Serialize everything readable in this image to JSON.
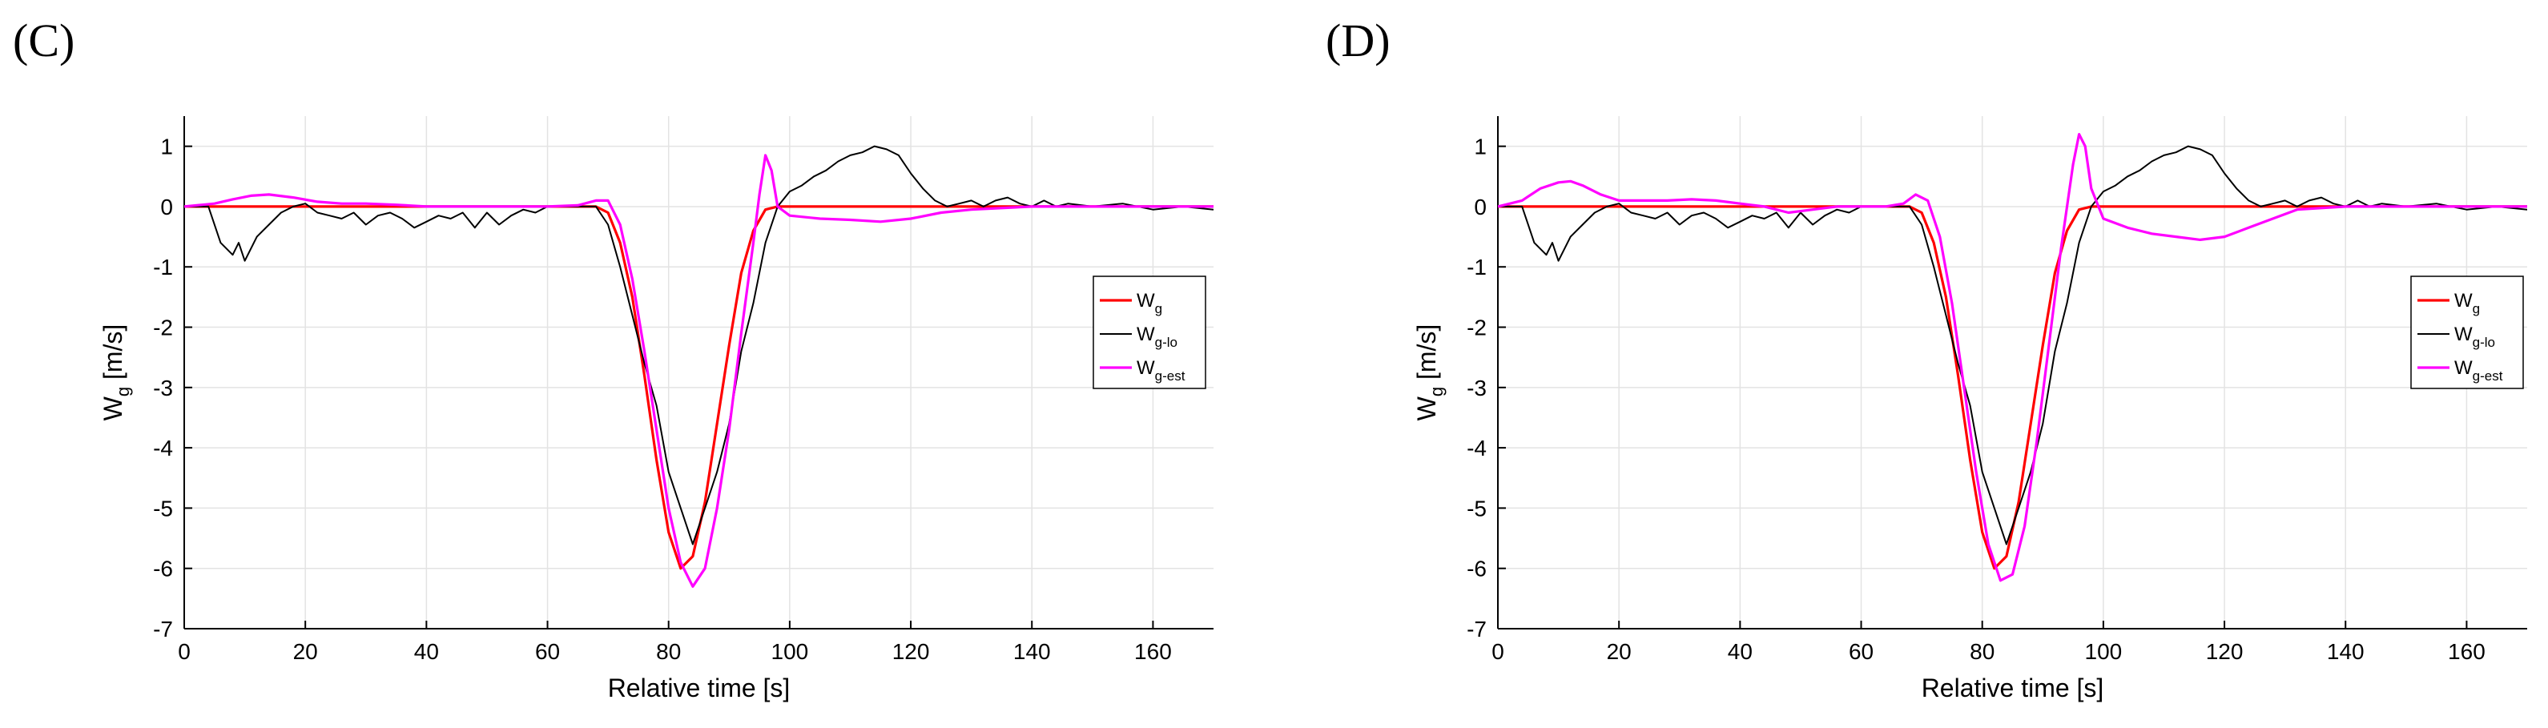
{
  "chart_data": [
    {
      "type": "line",
      "panel_label": "(C)",
      "xlabel": "Relative time [s]",
      "ylabel": {
        "main": "W",
        "sub": "g",
        "unit": " [m/s]"
      },
      "xlim": [
        0,
        170
      ],
      "ylim": [
        -7,
        1.5
      ],
      "xticks": [
        0,
        20,
        40,
        60,
        80,
        100,
        120,
        140,
        160
      ],
      "yticks": [
        1,
        0,
        -1,
        -2,
        -3,
        -4,
        -5,
        -6,
        -7
      ],
      "grid": true,
      "legend_position": "right",
      "series": [
        {
          "name": "W_g",
          "legend": {
            "main": "W",
            "sub": "g"
          },
          "color": "#ff0000",
          "style": "solid",
          "x": [
            0,
            68,
            70,
            72,
            74,
            76,
            78,
            80,
            82,
            84,
            86,
            88,
            90,
            92,
            94,
            96,
            98,
            100,
            170
          ],
          "y": [
            0,
            0,
            -0.1,
            -0.6,
            -1.5,
            -2.8,
            -4.2,
            -5.4,
            -6.0,
            -5.8,
            -4.9,
            -3.6,
            -2.3,
            -1.1,
            -0.4,
            -0.05,
            0,
            0,
            0
          ]
        },
        {
          "name": "W_g-lo",
          "legend": {
            "main": "W",
            "sub": "g-lo"
          },
          "color": "#000000",
          "style": "solid",
          "x": [
            0,
            4,
            6,
            8,
            9,
            10,
            12,
            14,
            16,
            18,
            20,
            22,
            24,
            26,
            28,
            30,
            32,
            34,
            36,
            38,
            40,
            42,
            44,
            46,
            48,
            50,
            52,
            54,
            56,
            58,
            60,
            62,
            64,
            66,
            68,
            70,
            72,
            74,
            76,
            78,
            80,
            82,
            84,
            86,
            88,
            90,
            92,
            94,
            96,
            98,
            100,
            102,
            104,
            106,
            108,
            110,
            112,
            114,
            116,
            118,
            120,
            122,
            124,
            126,
            128,
            130,
            132,
            134,
            136,
            138,
            140,
            142,
            144,
            146,
            150,
            155,
            160,
            165,
            170
          ],
          "y": [
            0,
            0,
            -0.6,
            -0.8,
            -0.6,
            -0.9,
            -0.5,
            -0.3,
            -0.1,
            0.0,
            0.05,
            -0.1,
            -0.15,
            -0.2,
            -0.1,
            -0.3,
            -0.15,
            -0.1,
            -0.2,
            -0.35,
            -0.25,
            -0.15,
            -0.2,
            -0.1,
            -0.35,
            -0.1,
            -0.3,
            -0.15,
            -0.05,
            -0.1,
            0.0,
            0.0,
            0.0,
            0.0,
            0.0,
            -0.3,
            -1.0,
            -1.8,
            -2.6,
            -3.3,
            -4.4,
            -5.0,
            -5.6,
            -5.0,
            -4.4,
            -3.6,
            -2.4,
            -1.6,
            -0.6,
            0.0,
            0.25,
            0.35,
            0.5,
            0.6,
            0.75,
            0.85,
            0.9,
            1.0,
            0.95,
            0.85,
            0.55,
            0.3,
            0.1,
            0.0,
            0.05,
            0.1,
            0.0,
            0.1,
            0.15,
            0.05,
            0.0,
            0.1,
            0.0,
            0.05,
            0.0,
            0.05,
            -0.05,
            0.0,
            -0.05
          ]
        },
        {
          "name": "W_g-est",
          "legend": {
            "main": "W",
            "sub": "g-est"
          },
          "color": "#ff00ff",
          "style": "solid",
          "x": [
            0,
            5,
            8,
            11,
            14,
            18,
            22,
            26,
            30,
            35,
            40,
            45,
            50,
            55,
            60,
            65,
            68,
            70,
            72,
            74,
            76,
            78,
            80,
            82,
            84,
            86,
            88,
            90,
            92,
            94,
            95,
            96,
            97,
            98,
            100,
            105,
            110,
            115,
            120,
            125,
            130,
            140,
            150,
            160,
            170
          ],
          "y": [
            0,
            0.05,
            0.12,
            0.18,
            0.2,
            0.15,
            0.08,
            0.05,
            0.05,
            0.03,
            0.0,
            0.0,
            0.0,
            0.0,
            0.0,
            0.02,
            0.1,
            0.1,
            -0.3,
            -1.2,
            -2.4,
            -3.7,
            -5.0,
            -5.9,
            -6.3,
            -6.0,
            -5.0,
            -3.7,
            -2.1,
            -0.6,
            0.2,
            0.85,
            0.6,
            0.0,
            -0.15,
            -0.2,
            -0.22,
            -0.25,
            -0.2,
            -0.1,
            -0.05,
            0.0,
            0.0,
            0.0,
            0.0
          ]
        }
      ]
    },
    {
      "type": "line",
      "panel_label": "(D)",
      "xlabel": "Relative time [s]",
      "ylabel": {
        "main": "W",
        "sub": "g",
        "unit": " [m/s]"
      },
      "xlim": [
        0,
        170
      ],
      "ylim": [
        -7,
        1.5
      ],
      "xticks": [
        0,
        20,
        40,
        60,
        80,
        100,
        120,
        140,
        160
      ],
      "yticks": [
        1,
        0,
        -1,
        -2,
        -3,
        -4,
        -5,
        -6,
        -7
      ],
      "grid": true,
      "legend_position": "right",
      "series": [
        {
          "name": "W_g",
          "legend": {
            "main": "W",
            "sub": "g"
          },
          "color": "#ff0000",
          "style": "solid",
          "x": [
            0,
            68,
            70,
            72,
            74,
            76,
            78,
            80,
            82,
            84,
            86,
            88,
            90,
            92,
            94,
            96,
            98,
            100,
            170
          ],
          "y": [
            0,
            0,
            -0.1,
            -0.6,
            -1.5,
            -2.8,
            -4.2,
            -5.4,
            -6.0,
            -5.8,
            -4.9,
            -3.6,
            -2.3,
            -1.1,
            -0.4,
            -0.05,
            0,
            0,
            0
          ]
        },
        {
          "name": "W_g-lo",
          "legend": {
            "main": "W",
            "sub": "g-lo"
          },
          "color": "#000000",
          "style": "solid",
          "x": [
            0,
            4,
            6,
            8,
            9,
            10,
            12,
            14,
            16,
            18,
            20,
            22,
            24,
            26,
            28,
            30,
            32,
            34,
            36,
            38,
            40,
            42,
            44,
            46,
            48,
            50,
            52,
            54,
            56,
            58,
            60,
            62,
            64,
            66,
            68,
            70,
            72,
            74,
            76,
            78,
            80,
            82,
            84,
            86,
            88,
            90,
            92,
            94,
            96,
            98,
            100,
            102,
            104,
            106,
            108,
            110,
            112,
            114,
            116,
            118,
            120,
            122,
            124,
            126,
            128,
            130,
            132,
            134,
            136,
            138,
            140,
            142,
            144,
            146,
            150,
            155,
            160,
            165,
            170
          ],
          "y": [
            0,
            0,
            -0.6,
            -0.8,
            -0.6,
            -0.9,
            -0.5,
            -0.3,
            -0.1,
            0.0,
            0.05,
            -0.1,
            -0.15,
            -0.2,
            -0.1,
            -0.3,
            -0.15,
            -0.1,
            -0.2,
            -0.35,
            -0.25,
            -0.15,
            -0.2,
            -0.1,
            -0.35,
            -0.1,
            -0.3,
            -0.15,
            -0.05,
            -0.1,
            0.0,
            0.0,
            0.0,
            0.0,
            0.0,
            -0.3,
            -1.0,
            -1.8,
            -2.6,
            -3.3,
            -4.4,
            -5.0,
            -5.6,
            -5.0,
            -4.4,
            -3.6,
            -2.4,
            -1.6,
            -0.6,
            0.0,
            0.25,
            0.35,
            0.5,
            0.6,
            0.75,
            0.85,
            0.9,
            1.0,
            0.95,
            0.85,
            0.55,
            0.3,
            0.1,
            0.0,
            0.05,
            0.1,
            0.0,
            0.1,
            0.15,
            0.05,
            0.0,
            0.1,
            0.0,
            0.05,
            0.0,
            0.05,
            -0.05,
            0.0,
            -0.05
          ]
        },
        {
          "name": "W_g-est",
          "legend": {
            "main": "W",
            "sub": "g-est"
          },
          "color": "#ff00ff",
          "style": "solid",
          "x": [
            0,
            4,
            7,
            10,
            12,
            14,
            17,
            20,
            24,
            28,
            32,
            36,
            40,
            44,
            48,
            52,
            56,
            60,
            64,
            67,
            69,
            71,
            73,
            75,
            77,
            79,
            81,
            83,
            85,
            87,
            89,
            91,
            93,
            95,
            96,
            97,
            98,
            100,
            104,
            108,
            112,
            116,
            120,
            124,
            128,
            132,
            140,
            150,
            160,
            170
          ],
          "y": [
            0,
            0.1,
            0.3,
            0.4,
            0.42,
            0.35,
            0.2,
            0.1,
            0.1,
            0.1,
            0.12,
            0.1,
            0.05,
            0.0,
            -0.1,
            -0.05,
            0.0,
            0.0,
            0.0,
            0.05,
            0.2,
            0.1,
            -0.5,
            -1.6,
            -3.0,
            -4.4,
            -5.6,
            -6.2,
            -6.1,
            -5.3,
            -3.9,
            -2.3,
            -0.7,
            0.7,
            1.2,
            1.0,
            0.3,
            -0.2,
            -0.35,
            -0.45,
            -0.5,
            -0.55,
            -0.5,
            -0.35,
            -0.2,
            -0.05,
            0.0,
            0.0,
            0.0,
            0.0
          ]
        }
      ]
    }
  ]
}
